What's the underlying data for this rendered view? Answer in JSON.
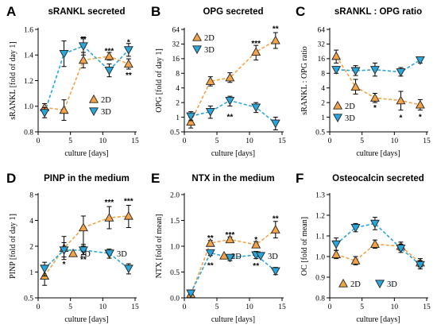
{
  "colors": {
    "2D": "#F3A448",
    "3D": "#2AA6DA",
    "marker_edge": "#222222"
  },
  "legend_labels": {
    "2D": "2D",
    "3D": "3D"
  },
  "chart_data": [
    {
      "letter": "A",
      "title": "sRANKL secreted",
      "type": "line",
      "xlabel": "culture [days]",
      "ylabel": "sRANKL [fold of day 1]",
      "xlim": [
        0,
        15
      ],
      "xticks": [
        "0",
        "5",
        "10",
        "15"
      ],
      "ylim": [
        0.8,
        1.6
      ],
      "yscale": "linear",
      "yticks": [
        "0.8",
        "1.0",
        "1.2",
        "1.4",
        "1.6"
      ],
      "grid": false,
      "legend": "center-right",
      "x": [
        1,
        4,
        7,
        11,
        14
      ],
      "series": [
        {
          "name": "2D",
          "values": [
            0.99,
            0.97,
            1.36,
            1.39,
            1.33
          ],
          "err": [
            0.03,
            0.08,
            0.06,
            0.03,
            0.04
          ]
        },
        {
          "name": "3D",
          "values": [
            0.95,
            1.41,
            1.47,
            1.28,
            1.44
          ],
          "err": [
            0.04,
            0.1,
            0.07,
            0.05,
            0.05
          ]
        }
      ],
      "annotations": [
        {
          "text": "**",
          "x": 7,
          "y": 1.525
        },
        {
          "text": "***",
          "x": 11,
          "y": 1.435
        },
        {
          "text": "*",
          "x": 14,
          "y": 1.505
        },
        {
          "text": "**",
          "x": 14,
          "y": 1.245
        }
      ]
    },
    {
      "letter": "B",
      "title": "OPG secreted",
      "type": "line",
      "xlabel": "culture [days]",
      "ylabel": "OPG [fold of day 1]",
      "xlim": [
        0,
        15
      ],
      "xticks": [
        "0",
        "5",
        "10",
        "15"
      ],
      "ylim": [
        0.5,
        64
      ],
      "yscale": "log2",
      "yticks": [
        "0.5",
        "1",
        "2",
        "4",
        "8",
        "16",
        "32",
        "64"
      ],
      "grid": false,
      "legend": "top-left",
      "x": [
        1,
        4,
        7,
        11,
        14
      ],
      "series": [
        {
          "name": "2D",
          "values": [
            0.8,
            5.5,
            6.5,
            22,
            38
          ],
          "err_lo": [
            0.6,
            4.4,
            5.2,
            15,
            26
          ],
          "err_hi": [
            1.0,
            6.8,
            8.2,
            30,
            55
          ]
        },
        {
          "name": "3D",
          "values": [
            1.05,
            1.3,
            2.2,
            1.6,
            0.75
          ],
          "err_lo": [
            0.85,
            0.95,
            1.7,
            1.25,
            0.55
          ],
          "err_hi": [
            1.3,
            1.7,
            2.7,
            2.0,
            1.0
          ]
        }
      ],
      "annotations": [
        {
          "text": "**",
          "x": 7,
          "y": 1.05
        },
        {
          "text": "***",
          "x": 11,
          "y": 34
        },
        {
          "text": "**",
          "x": 14,
          "y": 68
        }
      ]
    },
    {
      "letter": "C",
      "title": "sRANKL : OPG ratio",
      "type": "line",
      "xlabel": "culture [days]",
      "ylabel": "sRANKL : OPG ratio",
      "xlim": [
        0,
        15
      ],
      "xticks": [
        "0",
        "5",
        "10",
        "15"
      ],
      "ylim": [
        0.5,
        64
      ],
      "yscale": "log2",
      "yticks": [
        "0.5",
        "1",
        "2",
        "4",
        "8",
        "16",
        "32",
        "64"
      ],
      "grid": false,
      "legend": "bottom-left",
      "x": [
        1,
        4,
        7,
        11,
        14
      ],
      "series": [
        {
          "name": "2D",
          "values": [
            18,
            4.2,
            2.5,
            2.2,
            1.8
          ],
          "err_lo": [
            13,
            3.0,
            2.0,
            1.4,
            1.4
          ],
          "err_hi": [
            24,
            6.0,
            3.1,
            3.4,
            2.3
          ]
        },
        {
          "name": "3D",
          "values": [
            9.5,
            9.0,
            9.5,
            8.5,
            15
          ],
          "err_lo": [
            8.0,
            7.2,
            7.0,
            7.0,
            13
          ],
          "err_hi": [
            11,
            11.5,
            13,
            10.5,
            17
          ]
        }
      ],
      "annotations": [
        {
          "text": "*",
          "x": 7,
          "y": 1.6
        },
        {
          "text": "*",
          "x": 11,
          "y": 1.0
        },
        {
          "text": "*",
          "x": 14,
          "y": 1.05
        }
      ]
    },
    {
      "letter": "D",
      "title": "PINP in the medium",
      "type": "line",
      "xlabel": "culture [days]",
      "ylabel": "PINP [fold of day 1]",
      "xlim": [
        0,
        15
      ],
      "xticks": [
        "0",
        "5",
        "10",
        "15"
      ],
      "ylim": [
        0.5,
        8
      ],
      "yscale": "log2",
      "yticks": [
        "0.5",
        "1",
        "2",
        "4",
        "8"
      ],
      "grid": false,
      "legend": "bottom-center",
      "x": [
        1,
        4,
        7,
        11,
        14
      ],
      "series": [
        {
          "name": "2D",
          "values": [
            0.9,
            1.9,
            3.3,
            4.3,
            4.5
          ],
          "err_lo": [
            0.7,
            1.4,
            2.0,
            3.2,
            3.3
          ],
          "err_hi": [
            1.1,
            2.6,
            4.5,
            5.8,
            6.0
          ]
        },
        {
          "name": "3D",
          "values": [
            1.1,
            1.8,
            1.8,
            1.65,
            1.1
          ],
          "err_lo": [
            0.9,
            1.5,
            1.6,
            1.45,
            0.95
          ],
          "err_hi": [
            1.3,
            2.2,
            2.1,
            1.85,
            1.25
          ]
        }
      ],
      "annotations": [
        {
          "text": "*",
          "x": 4,
          "y": 1.25
        },
        {
          "text": "**",
          "x": 7,
          "y": 1.42
        },
        {
          "text": "***",
          "x": 11,
          "y": 6.6
        },
        {
          "text": "***",
          "x": 14,
          "y": 6.8
        }
      ]
    },
    {
      "letter": "E",
      "title": "NTX in the medium",
      "type": "line",
      "xlabel": "culture [days]",
      "ylabel": "NTX [fold of mean]",
      "xlim": [
        0,
        15
      ],
      "xticks": [
        "0",
        "5",
        "10",
        "15"
      ],
      "ylim": [
        0.0,
        2.0
      ],
      "yscale": "linear",
      "yticks": [
        "0.0",
        "0.5",
        "1.0",
        "1.5",
        "2.0"
      ],
      "grid": false,
      "legend": "bottom-center",
      "x": [
        1,
        4,
        7,
        11,
        14
      ],
      "series": [
        {
          "name": "2D",
          "values": [
            0.07,
            1.06,
            1.13,
            1.03,
            1.32
          ],
          "err": [
            0.02,
            0.05,
            0.05,
            0.06,
            0.16
          ]
        },
        {
          "name": "3D",
          "values": [
            0.09,
            0.87,
            0.78,
            0.83,
            0.52
          ],
          "err": [
            0.02,
            0.05,
            0.06,
            0.07,
            0.07
          ]
        }
      ],
      "annotations": [
        {
          "text": "**",
          "x": 4,
          "y": 1.17
        },
        {
          "text": "***",
          "x": 7,
          "y": 1.23
        },
        {
          "text": "*",
          "x": 11,
          "y": 1.14
        },
        {
          "text": "**",
          "x": 14,
          "y": 1.55
        },
        {
          "text": "**",
          "x": 4,
          "y": 0.64
        },
        {
          "text": "**",
          "x": 11,
          "y": 0.63
        }
      ]
    },
    {
      "letter": "F",
      "title": "Osteocalcin secreted",
      "type": "line",
      "xlabel": "culture [days]",
      "ylabel": "OC [fold of mean]",
      "xlim": [
        0,
        15
      ],
      "xticks": [
        "0",
        "5",
        "10",
        "15"
      ],
      "ylim": [
        0.8,
        1.3
      ],
      "yscale": "linear",
      "yticks": [
        "0.8",
        "0.9",
        "1.0",
        "1.1",
        "1.2",
        "1.3"
      ],
      "grid": false,
      "legend": "bottom-center",
      "x": [
        1,
        4,
        7,
        11,
        14
      ],
      "series": [
        {
          "name": "2D",
          "values": [
            1.01,
            0.98,
            1.06,
            1.05,
            0.97
          ],
          "err": [
            0.02,
            0.02,
            0.02,
            0.02,
            0.02
          ]
        },
        {
          "name": "3D",
          "values": [
            1.06,
            1.14,
            1.16,
            1.04,
            0.96
          ],
          "err": [
            0.03,
            0.02,
            0.03,
            0.02,
            0.02
          ]
        }
      ],
      "annotations": []
    }
  ]
}
